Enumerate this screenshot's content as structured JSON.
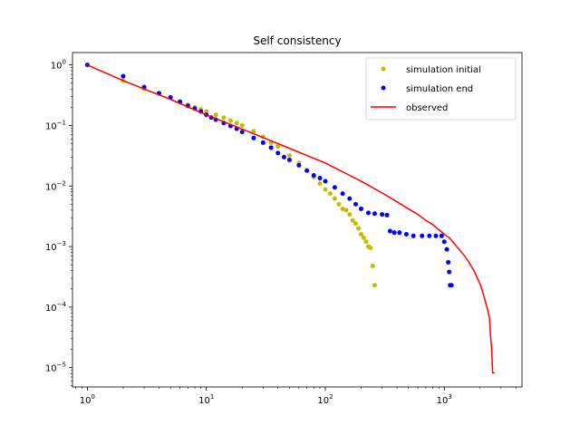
{
  "chart_data": {
    "type": "scatter",
    "title": "Self consistency",
    "xlabel": "",
    "ylabel": "",
    "xscale": "log",
    "yscale": "log",
    "xlim": [
      0.75,
      4500
    ],
    "ylim": [
      4.8e-06,
      1.6
    ],
    "grid": false,
    "legend_position": "top-right",
    "x_ticks": [
      {
        "value": 1,
        "base": "10",
        "exp": "0"
      },
      {
        "value": 10,
        "base": "10",
        "exp": "1"
      },
      {
        "value": 100,
        "base": "10",
        "exp": "2"
      },
      {
        "value": 1000,
        "base": "10",
        "exp": "3"
      }
    ],
    "y_ticks": [
      {
        "value": 1,
        "base": "10",
        "exp": "0"
      },
      {
        "value": 0.1,
        "base": "10",
        "exp": "−1"
      },
      {
        "value": 0.01,
        "base": "10",
        "exp": "−2"
      },
      {
        "value": 0.001,
        "base": "10",
        "exp": "−3"
      },
      {
        "value": 0.0001,
        "base": "10",
        "exp": "−4"
      },
      {
        "value": 1e-05,
        "base": "10",
        "exp": "−5"
      }
    ],
    "series": [
      {
        "name": "simulation initial",
        "kind": "points",
        "color": "#bfbf00",
        "x": [
          1,
          2,
          3,
          4,
          5,
          6,
          7,
          8,
          9,
          10,
          12,
          14,
          16,
          18,
          20,
          25,
          30,
          35,
          40,
          50,
          60,
          70,
          80,
          90,
          100,
          110,
          120,
          130,
          140,
          150,
          160,
          170,
          180,
          190,
          200,
          210,
          220,
          230,
          240,
          250,
          260
        ],
        "y": [
          1.0,
          0.55,
          0.4,
          0.34,
          0.29,
          0.25,
          0.22,
          0.2,
          0.185,
          0.17,
          0.15,
          0.135,
          0.12,
          0.11,
          0.1,
          0.08,
          0.065,
          0.052,
          0.045,
          0.032,
          0.024,
          0.018,
          0.014,
          0.011,
          0.0088,
          0.0075,
          0.0062,
          0.005,
          0.0042,
          0.004,
          0.0034,
          0.0027,
          0.0024,
          0.002,
          0.0016,
          0.0014,
          0.0012,
          0.001,
          0.00095,
          0.00048,
          0.00023
        ]
      },
      {
        "name": "simulation end",
        "kind": "points",
        "color": "#0000ff",
        "x": [
          1,
          2,
          3,
          4,
          5,
          6,
          7,
          8,
          9,
          10,
          11,
          12,
          14,
          16,
          18,
          20,
          25,
          30,
          35,
          40,
          45,
          50,
          60,
          70,
          80,
          90,
          100,
          120,
          140,
          160,
          180,
          200,
          230,
          260,
          300,
          330,
          350,
          380,
          420,
          480,
          550,
          650,
          750,
          850,
          950,
          1000,
          1050,
          1080,
          1100,
          1120,
          1150
        ],
        "y": [
          1.0,
          0.65,
          0.43,
          0.34,
          0.29,
          0.245,
          0.21,
          0.19,
          0.17,
          0.15,
          0.135,
          0.125,
          0.11,
          0.098,
          0.088,
          0.078,
          0.062,
          0.052,
          0.043,
          0.035,
          0.03,
          0.027,
          0.022,
          0.018,
          0.015,
          0.0135,
          0.012,
          0.0095,
          0.0075,
          0.0062,
          0.005,
          0.0042,
          0.0036,
          0.0035,
          0.0034,
          0.0033,
          0.0018,
          0.0017,
          0.0017,
          0.0016,
          0.0015,
          0.0015,
          0.0015,
          0.0015,
          0.0015,
          0.0012,
          0.0009,
          0.00055,
          0.00038,
          0.00023,
          0.00023
        ]
      },
      {
        "name": "observed",
        "kind": "line",
        "color": "#ff0000",
        "x": [
          1,
          2,
          3,
          5,
          10,
          20,
          30,
          50,
          70,
          100,
          150,
          200,
          300,
          400,
          500,
          600,
          700,
          800,
          900,
          1000,
          1100,
          1200,
          1300,
          1400,
          1500,
          1600,
          1700,
          1800,
          1900,
          2000,
          2100,
          2200,
          2300,
          2400,
          2450,
          2500,
          2550,
          2600,
          2650
        ],
        "y": [
          1.0,
          0.55,
          0.4,
          0.27,
          0.15,
          0.087,
          0.063,
          0.042,
          0.032,
          0.024,
          0.016,
          0.012,
          0.0077,
          0.0055,
          0.0042,
          0.0034,
          0.0027,
          0.0023,
          0.0019,
          0.0016,
          0.0014,
          0.00115,
          0.00095,
          0.0008,
          0.00068,
          0.00056,
          0.00046,
          0.00038,
          0.0003,
          0.00024,
          0.00018,
          0.00013,
          9.5e-05,
          6.5e-05,
          3.3e-05,
          2.1e-05,
          8.2e-06,
          8.2e-06,
          8.2e-06
        ]
      }
    ]
  }
}
